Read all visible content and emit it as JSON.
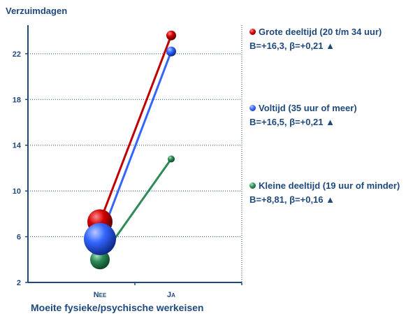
{
  "chart_data": {
    "type": "scatter",
    "title": "",
    "ylabel": "Verzuimdagen",
    "xlabel": "Moeite fysieke/psychische werkeisen",
    "categories": [
      "Nee",
      "Ja"
    ],
    "ylim": [
      2,
      24.5
    ],
    "yticks": [
      2,
      6,
      10,
      14,
      18,
      22
    ],
    "grid": true,
    "legend_position": "right",
    "series": [
      {
        "name": "Grote deeltijd (20 t/m 34 uur)",
        "stats": "B=+16,3, β=+0,21 ▲",
        "color": "#c00000",
        "values": [
          7.3,
          23.6
        ]
      },
      {
        "name": "Voltijd (35 uur of meer)",
        "stats": "B=+16,5, β=+0,21 ▲",
        "color": "#3366ff",
        "values": [
          5.8,
          22.2
        ]
      },
      {
        "name": "Kleine deeltijd (19 uur of minder)",
        "stats": "B=+8,81, β=+0,16 ▲",
        "color": "#2e8b57",
        "values": [
          4.0,
          12.8
        ]
      }
    ]
  }
}
